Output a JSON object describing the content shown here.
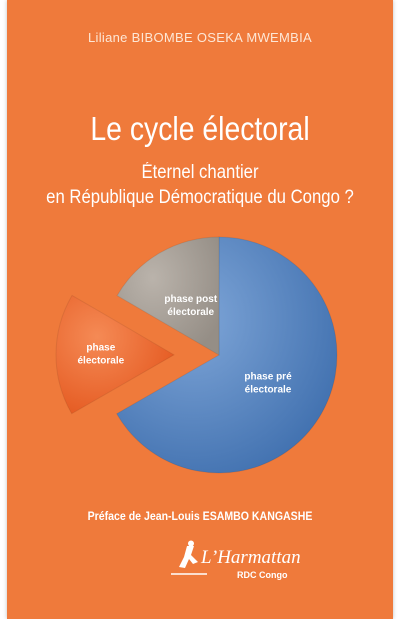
{
  "cover": {
    "author": "Liliane BIBOMBE OSEKA MWEMBIA",
    "title": "Le cycle électoral",
    "subtitle_line1": "Éternel chantier",
    "subtitle_line2": "en République Démocratique du Congo ?",
    "preface": "Préface de Jean-Louis ESAMBO KANGASHE",
    "publisher": {
      "name": "Harmattan",
      "apostrophe": "L’",
      "sub": "RDC Congo"
    }
  },
  "chart_data": {
    "type": "pie",
    "title": "",
    "labels": [
      "phase pré électorale",
      "phase électorale",
      "phase post électorale"
    ],
    "label_lines": [
      [
        "phase pré",
        "électorale"
      ],
      [
        "phase",
        "électorale"
      ],
      [
        "phase post",
        "électorale"
      ]
    ],
    "values": [
      66.7,
      16.7,
      16.6
    ],
    "colors": [
      "#5b88c4",
      "#f06b2e",
      "#a9a29a"
    ],
    "exploded": [
      false,
      true,
      false
    ]
  }
}
